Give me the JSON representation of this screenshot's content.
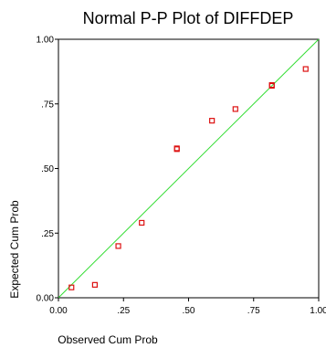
{
  "chart_data": {
    "type": "scatter",
    "title": "Normal P-P Plot of DIFFDEP",
    "xlabel": "Observed Cum Prob",
    "ylabel": "Expected Cum Prob",
    "xlim": [
      0,
      1
    ],
    "ylim": [
      0,
      1
    ],
    "xticks": [
      0,
      0.25,
      0.5,
      0.75,
      1
    ],
    "yticks": [
      0,
      0.25,
      0.5,
      0.75,
      1
    ],
    "xtick_labels": [
      "0.00",
      ".25",
      ".50",
      ".75",
      "1.00"
    ],
    "ytick_labels": [
      "0.00",
      ".25",
      ".50",
      ".75",
      "1.00"
    ],
    "grid": false,
    "reference_line": {
      "from": [
        0,
        0
      ],
      "to": [
        1,
        1
      ],
      "color": "#33dd33"
    },
    "marker_color": "#dd1111",
    "points": [
      {
        "x": 0.05,
        "y": 0.04
      },
      {
        "x": 0.14,
        "y": 0.05
      },
      {
        "x": 0.23,
        "y": 0.2
      },
      {
        "x": 0.32,
        "y": 0.29
      },
      {
        "x": 0.455,
        "y": 0.575
      },
      {
        "x": 0.455,
        "y": 0.578
      },
      {
        "x": 0.59,
        "y": 0.685
      },
      {
        "x": 0.68,
        "y": 0.73
      },
      {
        "x": 0.82,
        "y": 0.82
      },
      {
        "x": 0.82,
        "y": 0.823
      },
      {
        "x": 0.95,
        "y": 0.885
      }
    ]
  }
}
